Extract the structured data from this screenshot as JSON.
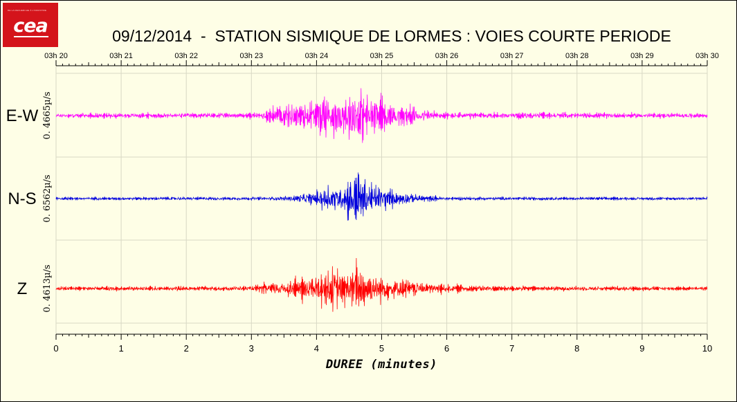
{
  "title": "09/12/2014  -  STATION SISMIQUE DE LORMES : VOIES COURTE PERIODE",
  "logo": {
    "text": "cea",
    "tagline": "DE LA RECHERCHE À L'INDUSTRIE"
  },
  "chart_data": {
    "type": "line",
    "xlabel": "DUREE (minutes)",
    "xlim": [
      0,
      10
    ],
    "x_ticks": [
      "0",
      "1",
      "2",
      "3",
      "4",
      "5",
      "6",
      "7",
      "8",
      "9",
      "10"
    ],
    "top_time_ticks": [
      "03h 20",
      "03h 21",
      "03h 22",
      "03h 23",
      "03h 24",
      "03h 25",
      "03h 26",
      "03h 27",
      "03h 28",
      "03h 29",
      "03h 30"
    ],
    "grid": true,
    "series": [
      {
        "name": "E-W",
        "scale": "0. 4665µ/s",
        "color": "#ff00ff",
        "description_of_envelope": [
          [
            0,
            0.08
          ],
          [
            3.1,
            0.1
          ],
          [
            3.3,
            0.3
          ],
          [
            3.5,
            0.45
          ],
          [
            4.0,
            0.55
          ],
          [
            4.1,
            1.0
          ],
          [
            4.3,
            0.6
          ],
          [
            4.6,
            1.0
          ],
          [
            4.9,
            0.7
          ],
          [
            5.2,
            0.4
          ],
          [
            5.6,
            0.25
          ],
          [
            6.0,
            0.12
          ],
          [
            10,
            0.08
          ]
        ]
      },
      {
        "name": "N-S",
        "scale": "0. 6562µ/s",
        "color": "#0000dd",
        "description_of_envelope": [
          [
            0,
            0.05
          ],
          [
            3.3,
            0.06
          ],
          [
            3.6,
            0.1
          ],
          [
            4.05,
            0.25
          ],
          [
            4.1,
            0.5
          ],
          [
            4.4,
            0.4
          ],
          [
            4.6,
            1.0
          ],
          [
            4.8,
            0.55
          ],
          [
            5.2,
            0.25
          ],
          [
            5.6,
            0.12
          ],
          [
            6.0,
            0.06
          ],
          [
            10,
            0.05
          ]
        ]
      },
      {
        "name": "Z",
        "scale": "0. 4613µ/s",
        "color": "#ff0000",
        "description_of_envelope": [
          [
            0,
            0.07
          ],
          [
            3.0,
            0.09
          ],
          [
            3.3,
            0.25
          ],
          [
            3.6,
            0.35
          ],
          [
            4.1,
            0.55
          ],
          [
            4.2,
            0.8
          ],
          [
            4.5,
            0.6
          ],
          [
            4.6,
            1.0
          ],
          [
            4.8,
            0.65
          ],
          [
            5.1,
            0.4
          ],
          [
            5.6,
            0.25
          ],
          [
            6.0,
            0.15
          ],
          [
            7.0,
            0.1
          ],
          [
            10,
            0.07
          ]
        ]
      }
    ]
  }
}
